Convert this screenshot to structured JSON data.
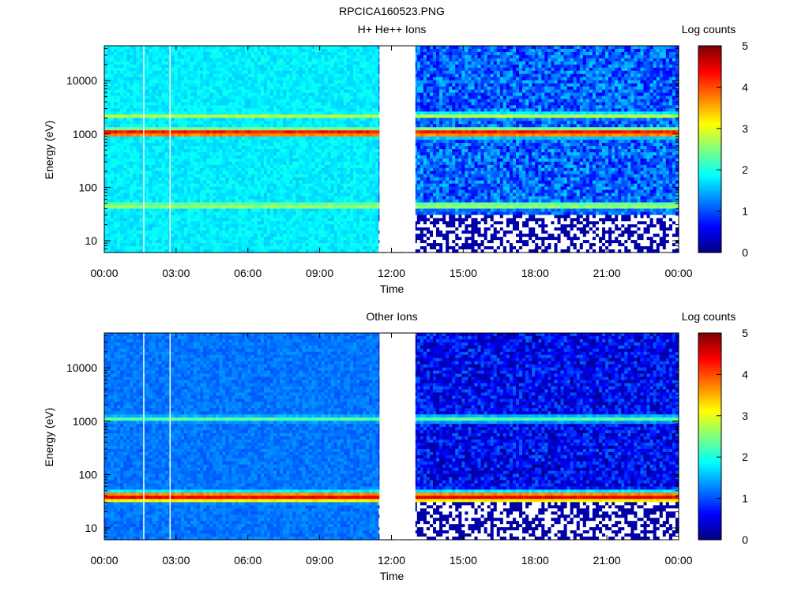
{
  "figure_title": "RPCICA160523.PNG",
  "colors": {
    "background": "#ffffff",
    "band_peak": "#ff2a00",
    "band_ring": "#ffd000",
    "band_halo": "#39e8b8",
    "background_blue": "#0a64ff",
    "dark_blue": "#0010c0",
    "bright_blue": "#1ea8ff",
    "cyan": "#20d0e8",
    "data_gap": "#ffffff"
  },
  "chart_data": [
    {
      "type": "heatmap",
      "title": "H+ He++ Ions",
      "xlabel": "Time",
      "ylabel": "Energy (eV)",
      "colorbar_label": "Log counts",
      "colorbar_ticks": [
        "0",
        "1",
        "2",
        "3",
        "4",
        "5"
      ],
      "colorbar_range": [
        0,
        5
      ],
      "x_ticks": [
        "00:00",
        "03:00",
        "06:00",
        "09:00",
        "12:00",
        "15:00",
        "18:00",
        "21:00",
        "00:00"
      ],
      "y_ticks": [
        "10",
        "100",
        "1000",
        "10000"
      ],
      "y_scale": "log",
      "ylim": [
        6,
        45000
      ],
      "xlim_hours": [
        0,
        24
      ],
      "data_gap_hours": [
        11.5,
        13.0
      ],
      "vertical_lines_hours": [
        1.65,
        2.75
      ],
      "bands": [
        {
          "energy_ev": 1050,
          "log_counts": 4.4,
          "width_decades": 0.07
        },
        {
          "energy_ev": 2200,
          "log_counts": 2.9,
          "width_decades": 0.05
        },
        {
          "energy_ev": 45,
          "log_counts": 2.8,
          "width_decades": 0.06
        }
      ],
      "background_log_counts": {
        "first_half": 1.8,
        "second_half": 1.1
      }
    },
    {
      "type": "heatmap",
      "title": "Other Ions",
      "xlabel": "Time",
      "ylabel": "Energy (eV)",
      "colorbar_label": "Log counts",
      "colorbar_ticks": [
        "0",
        "1",
        "2",
        "3",
        "4",
        "5"
      ],
      "colorbar_range": [
        0,
        5
      ],
      "x_ticks": [
        "00:00",
        "03:00",
        "06:00",
        "09:00",
        "12:00",
        "15:00",
        "18:00",
        "21:00",
        "00:00"
      ],
      "y_ticks": [
        "10",
        "100",
        "1000",
        "10000"
      ],
      "y_scale": "log",
      "ylim": [
        6,
        45000
      ],
      "xlim_hours": [
        0,
        24
      ],
      "data_gap_hours": [
        11.5,
        13.0
      ],
      "vertical_lines_hours": [
        1.65,
        2.75
      ],
      "bands": [
        {
          "energy_ev": 38,
          "log_counts": 4.5,
          "width_decades": 0.08
        },
        {
          "energy_ev": 1100,
          "log_counts": 2.3,
          "width_decades": 0.06
        }
      ],
      "background_log_counts": {
        "first_half": 1.2,
        "second_half": 0.6
      }
    }
  ]
}
